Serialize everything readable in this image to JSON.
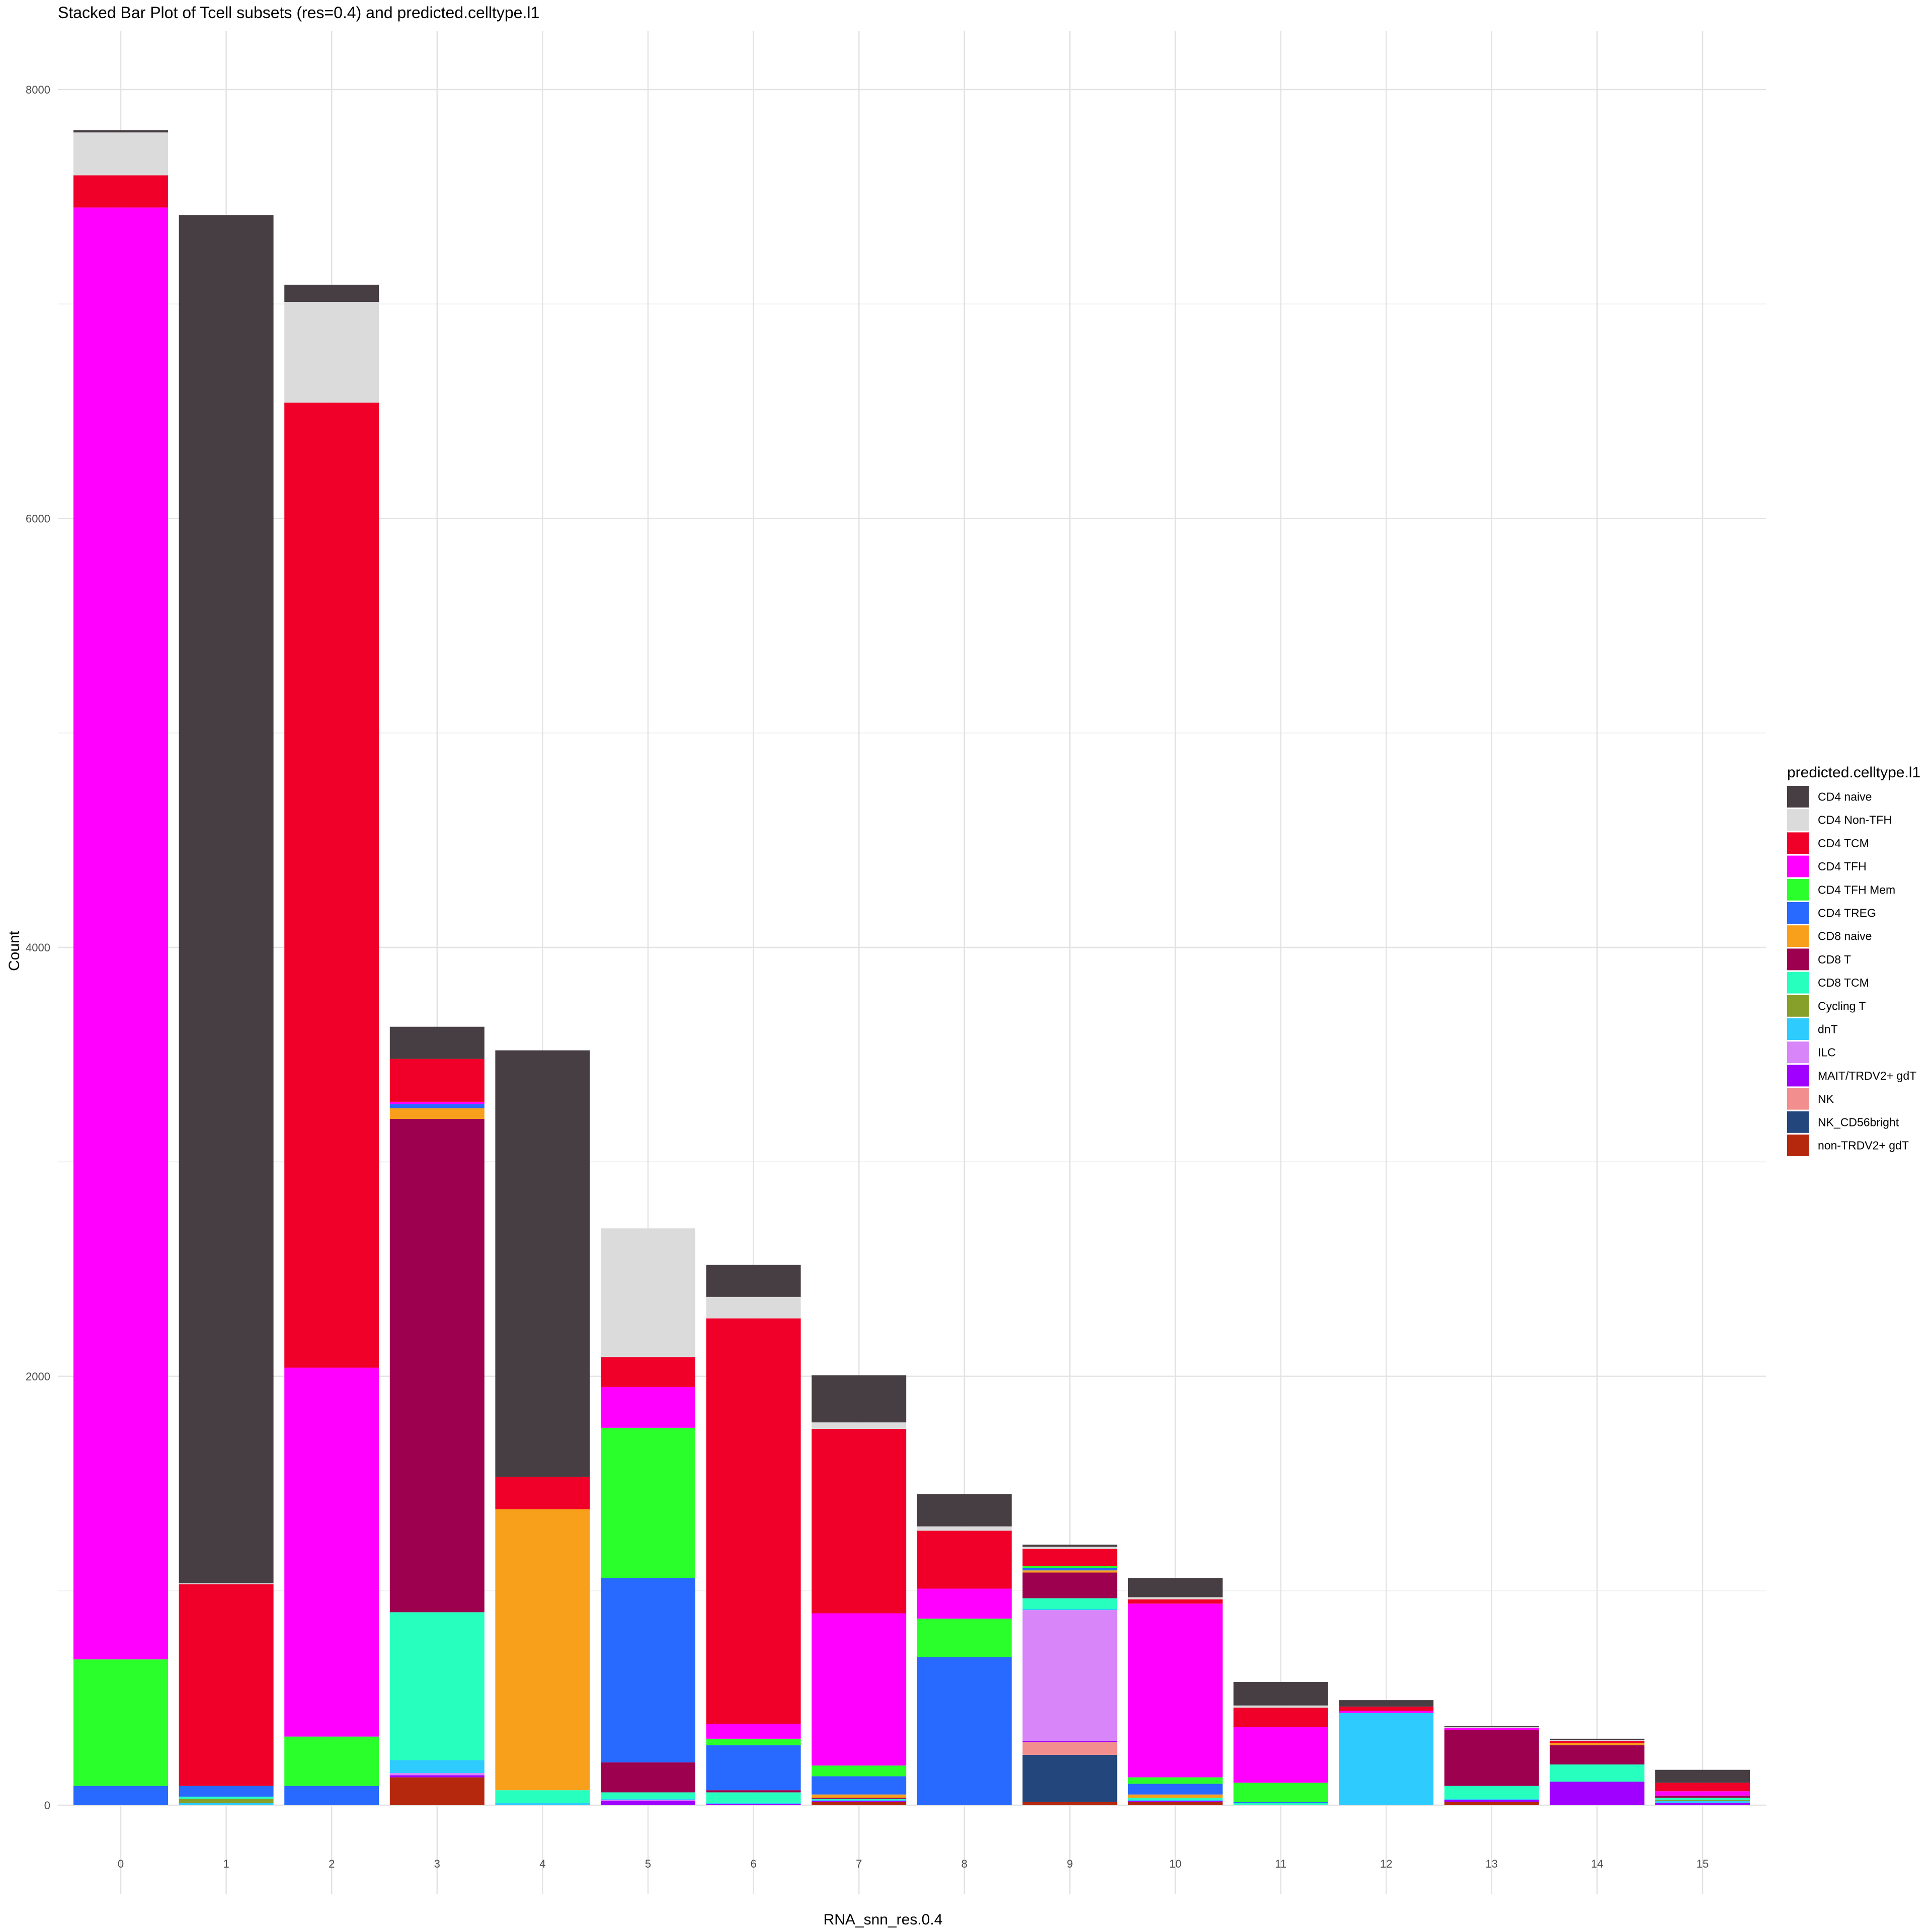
{
  "chart_data": {
    "type": "bar",
    "stacked": true,
    "title": "Stacked Bar Plot of Tcell subsets (res=0.4) and predicted.celltype.l1",
    "xlabel": "RNA_snn_res.0.4",
    "ylabel": "Count",
    "ylim": [
      -400,
      8200
    ],
    "yticks": [
      0,
      2000,
      4000,
      6000,
      8000
    ],
    "grid": true,
    "legend_position": "right",
    "legend_title": "predicted.celltype.l1",
    "categories": [
      "0",
      "1",
      "2",
      "3",
      "4",
      "5",
      "6",
      "7",
      "8",
      "9",
      "10",
      "11",
      "12",
      "13",
      "14",
      "15"
    ],
    "series": [
      {
        "name": "non-TRDV2+ gdT",
        "color": "#B5280E",
        "values": [
          0,
          0,
          0,
          130,
          0,
          0,
          0,
          15,
          0,
          15,
          15,
          0,
          0,
          15,
          0,
          0
        ]
      },
      {
        "name": "NK_CD56bright",
        "color": "#23467D",
        "values": [
          0,
          0,
          0,
          0,
          0,
          0,
          0,
          0,
          0,
          220,
          0,
          0,
          0,
          0,
          0,
          0
        ]
      },
      {
        "name": "NK",
        "color": "#F38E8E",
        "values": [
          0,
          0,
          0,
          0,
          0,
          0,
          0,
          0,
          0,
          60,
          0,
          0,
          0,
          0,
          0,
          0
        ]
      },
      {
        "name": "MAIT/TRDV2+ gdT",
        "color": "#A000FF",
        "values": [
          0,
          0,
          0,
          10,
          0,
          20,
          5,
          5,
          0,
          5,
          5,
          0,
          0,
          10,
          110,
          10
        ]
      },
      {
        "name": "ILC",
        "color": "#D785F9",
        "values": [
          0,
          0,
          0,
          10,
          0,
          5,
          0,
          0,
          0,
          610,
          0,
          0,
          0,
          0,
          0,
          0
        ]
      },
      {
        "name": "dnT",
        "color": "#2ECBFF",
        "values": [
          0,
          10,
          0,
          60,
          10,
          5,
          5,
          5,
          0,
          5,
          5,
          0,
          430,
          5,
          0,
          10
        ]
      },
      {
        "name": "Cycling T",
        "color": "#86A02A",
        "values": [
          0,
          20,
          0,
          0,
          0,
          0,
          0,
          0,
          0,
          0,
          0,
          0,
          0,
          0,
          0,
          5
        ]
      },
      {
        "name": "CD8 TCM",
        "color": "#27FFBE",
        "values": [
          0,
          10,
          0,
          690,
          60,
          30,
          50,
          5,
          0,
          50,
          10,
          10,
          0,
          60,
          80,
          10
        ]
      },
      {
        "name": "CD8 T",
        "color": "#9D004F",
        "values": [
          0,
          0,
          0,
          2300,
          0,
          140,
          10,
          5,
          0,
          120,
          0,
          0,
          0,
          260,
          90,
          10
        ]
      },
      {
        "name": "CD8 naive",
        "color": "#F8A01B",
        "values": [
          0,
          0,
          0,
          50,
          1310,
          0,
          0,
          15,
          0,
          10,
          15,
          0,
          0,
          0,
          10,
          0
        ]
      },
      {
        "name": "CD4 TREG",
        "color": "#2869FF",
        "values": [
          90,
          50,
          90,
          20,
          0,
          860,
          210,
          85,
          690,
          10,
          50,
          5,
          0,
          0,
          0,
          0
        ]
      },
      {
        "name": "CD4 TFH Mem",
        "color": "#2BFF2B",
        "values": [
          590,
          0,
          230,
          0,
          0,
          700,
          30,
          50,
          180,
          10,
          30,
          90,
          0,
          0,
          0,
          0
        ]
      },
      {
        "name": "CD4 TFH",
        "color": "#FF00FF",
        "values": [
          6770,
          0,
          1720,
          10,
          0,
          190,
          70,
          710,
          140,
          0,
          810,
          260,
          10,
          10,
          0,
          20
        ]
      },
      {
        "name": "CD4 TCM",
        "color": "#F00028",
        "values": [
          150,
          940,
          4500,
          200,
          150,
          140,
          1890,
          860,
          270,
          80,
          20,
          90,
          20,
          0,
          10,
          40
        ]
      },
      {
        "name": "CD4 Non-TFH",
        "color": "#DCDBDC",
        "values": [
          200,
          5,
          470,
          0,
          0,
          600,
          100,
          30,
          20,
          10,
          10,
          10,
          0,
          5,
          5,
          0
        ]
      },
      {
        "name": "CD4 naive",
        "color": "#463E43",
        "values": [
          10,
          6380,
          80,
          150,
          1990,
          0,
          150,
          220,
          150,
          10,
          90,
          110,
          30,
          5,
          5,
          60
        ]
      }
    ]
  },
  "legend": {
    "title": "predicted.celltype.l1",
    "items": [
      {
        "label": "CD4 naive",
        "color": "#463E43"
      },
      {
        "label": "CD4 Non-TFH",
        "color": "#DCDBDC"
      },
      {
        "label": "CD4 TCM",
        "color": "#F00028"
      },
      {
        "label": "CD4 TFH",
        "color": "#FF00FF"
      },
      {
        "label": "CD4 TFH Mem",
        "color": "#2BFF2B"
      },
      {
        "label": "CD4 TREG",
        "color": "#2869FF"
      },
      {
        "label": "CD8 naive",
        "color": "#F8A01B"
      },
      {
        "label": "CD8 T",
        "color": "#9D004F"
      },
      {
        "label": "CD8 TCM",
        "color": "#27FFBE"
      },
      {
        "label": "Cycling T",
        "color": "#86A02A"
      },
      {
        "label": "dnT",
        "color": "#2ECBFF"
      },
      {
        "label": "ILC",
        "color": "#D785F9"
      },
      {
        "label": "MAIT/TRDV2+ gdT",
        "color": "#A000FF"
      },
      {
        "label": "NK",
        "color": "#F38E8E"
      },
      {
        "label": "NK_CD56bright",
        "color": "#23467D"
      },
      {
        "label": "non-TRDV2+ gdT",
        "color": "#B5280E"
      }
    ]
  }
}
